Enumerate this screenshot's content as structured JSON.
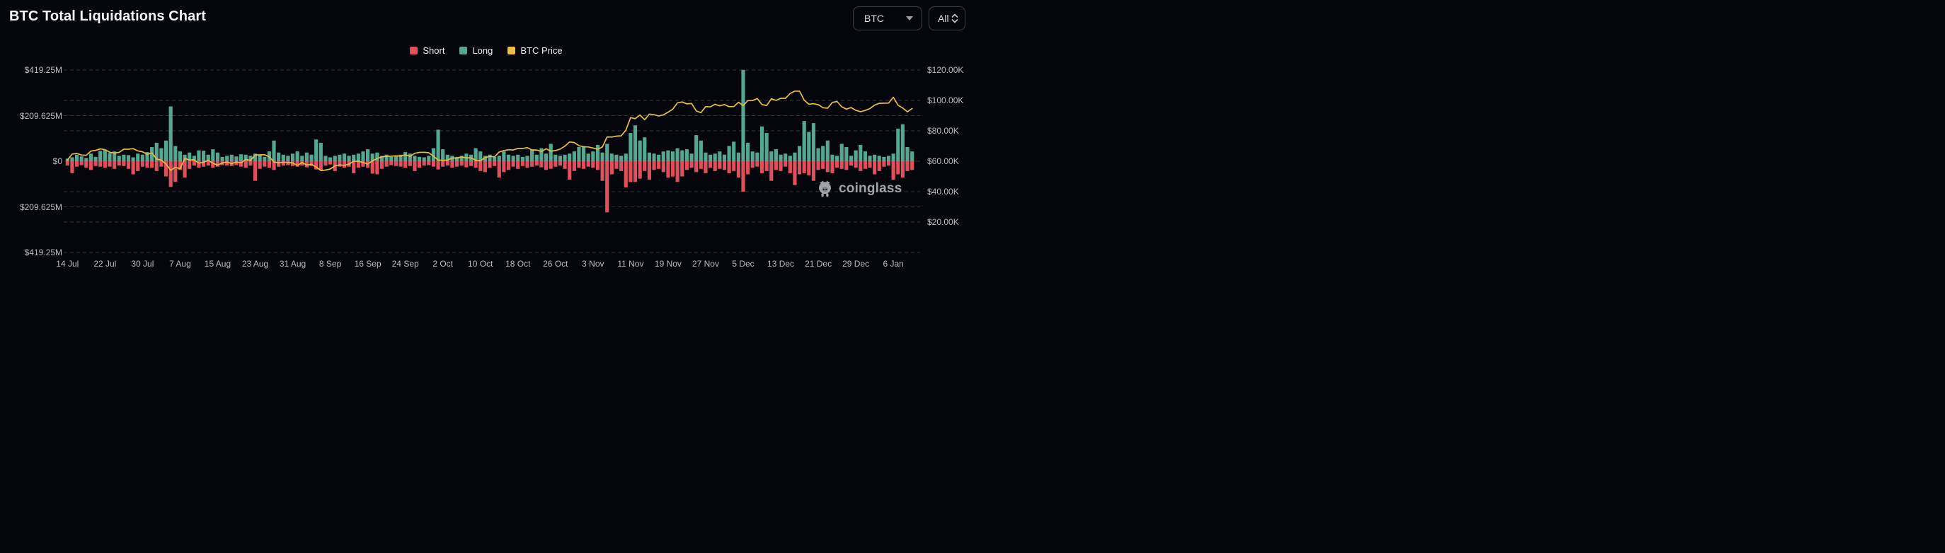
{
  "header": {
    "title": "BTC Total Liquidations Chart"
  },
  "controls": {
    "symbol_select": {
      "value": "BTC",
      "icon": "chevron-down-icon"
    },
    "range_select": {
      "value": "All",
      "icon": "up-down-arrows-icon"
    }
  },
  "legend": [
    {
      "label": "Short",
      "color": "#e0505c"
    },
    {
      "label": "Long",
      "color": "#54a791"
    },
    {
      "label": "BTC Price",
      "color": "#ecbe3d"
    }
  ],
  "watermark": {
    "text": "coinglass",
    "icon": "coinglass-pig-icon"
  },
  "colors": {
    "background": "#04060b",
    "grid": "#33363c",
    "zero_line": "#2b2e34",
    "axis_text": "#b9bcc2",
    "short": "#e0505c",
    "long": "#54a791",
    "price": "#ecbe3d",
    "title_text": "#f2f3f5",
    "watermark": "#aeb1b6",
    "control_border": "#3c4048"
  },
  "chart_data": {
    "type": "bar",
    "subtype": "bidirectional-bars-with-line-overlay",
    "title": "BTC Total Liquidations Chart",
    "grid": "dashed-horizontal",
    "legend_position": "top-center",
    "x": {
      "start": "14 Jul",
      "end": "10 Jan",
      "days": 181,
      "interval": "1d"
    },
    "x_ticks": [
      {
        "label": "14 Jul",
        "day": 0
      },
      {
        "label": "22 Jul",
        "day": 8
      },
      {
        "label": "30 Jul",
        "day": 16
      },
      {
        "label": "7 Aug",
        "day": 24
      },
      {
        "label": "15 Aug",
        "day": 32
      },
      {
        "label": "23 Aug",
        "day": 40
      },
      {
        "label": "31 Aug",
        "day": 48
      },
      {
        "label": "8 Sep",
        "day": 56
      },
      {
        "label": "16 Sep",
        "day": 64
      },
      {
        "label": "24 Sep",
        "day": 72
      },
      {
        "label": "2 Oct",
        "day": 80
      },
      {
        "label": "10 Oct",
        "day": 88
      },
      {
        "label": "18 Oct",
        "day": 96
      },
      {
        "label": "26 Oct",
        "day": 104
      },
      {
        "label": "3 Nov",
        "day": 112
      },
      {
        "label": "11 Nov",
        "day": 120
      },
      {
        "label": "19 Nov",
        "day": 128
      },
      {
        "label": "27 Nov",
        "day": 136
      },
      {
        "label": "5 Dec",
        "day": 144
      },
      {
        "label": "13 Dec",
        "day": 152
      },
      {
        "label": "21 Dec",
        "day": 160
      },
      {
        "label": "29 Dec",
        "day": 168
      },
      {
        "label": "6 Jan",
        "day": 176
      }
    ],
    "left_axis": {
      "unit": "$M",
      "ticks": [
        {
          "label": "$419.25M",
          "value": 419.25
        },
        {
          "label": "$209.625M",
          "value": 209.625
        },
        {
          "label": "$0",
          "value": 0
        },
        {
          "label": "$209.625M",
          "value": -209.625
        },
        {
          "label": "$419.25M",
          "value": -419.25
        }
      ]
    },
    "right_axis": {
      "unit": "$K",
      "zero_line_price_k": 60,
      "ticks": [
        {
          "label": "$120.00K",
          "value": 120
        },
        {
          "label": "$100.00K",
          "value": 100
        },
        {
          "label": "$80.00K",
          "value": 80
        },
        {
          "label": "$60.00K",
          "value": 60
        },
        {
          "label": "$40.00K",
          "value": 40
        },
        {
          "label": "$20.00K",
          "value": 20
        }
      ]
    },
    "series": [
      {
        "name": "Long",
        "axis": "left",
        "unit": "$M",
        "direction": "up",
        "color": "#54a791",
        "values": [
          12,
          18,
          30,
          22,
          15,
          35,
          20,
          48,
          52,
          38,
          45,
          25,
          30,
          28,
          18,
          35,
          30,
          42,
          65,
          85,
          60,
          95,
          252,
          70,
          45,
          30,
          40,
          25,
          50,
          48,
          30,
          55,
          40,
          20,
          25,
          30,
          22,
          32,
          30,
          25,
          35,
          28,
          20,
          45,
          95,
          40,
          30,
          25,
          35,
          45,
          25,
          40,
          30,
          100,
          85,
          25,
          18,
          25,
          30,
          35,
          25,
          30,
          35,
          45,
          55,
          35,
          40,
          25,
          30,
          20,
          25,
          30,
          42,
          35,
          25,
          20,
          18,
          25,
          60,
          145,
          55,
          30,
          25,
          20,
          25,
          35,
          30,
          60,
          45,
          25,
          30,
          20,
          25,
          45,
          30,
          25,
          30,
          20,
          25,
          55,
          30,
          60,
          35,
          80,
          30,
          25,
          30,
          35,
          45,
          65,
          70,
          35,
          45,
          75,
          40,
          80,
          35,
          30,
          25,
          35,
          130,
          165,
          95,
          110,
          40,
          35,
          30,
          45,
          50,
          45,
          60,
          50,
          55,
          35,
          120,
          95,
          40,
          30,
          35,
          45,
          30,
          70,
          90,
          40,
          420,
          85,
          45,
          40,
          160,
          130,
          45,
          55,
          30,
          35,
          25,
          40,
          70,
          185,
          135,
          175,
          60,
          70,
          95,
          30,
          25,
          80,
          65,
          25,
          50,
          75,
          45,
          25,
          30,
          25,
          20,
          25,
          35,
          150,
          170,
          65,
          45
        ]
      },
      {
        "name": "Short",
        "axis": "left",
        "unit": "$M",
        "direction": "down",
        "color": "#e0505c",
        "values": [
          20,
          55,
          25,
          18,
          30,
          40,
          22,
          25,
          30,
          25,
          35,
          20,
          22,
          35,
          60,
          45,
          25,
          30,
          30,
          45,
          25,
          70,
          118,
          95,
          40,
          75,
          35,
          20,
          30,
          25,
          20,
          30,
          25,
          18,
          20,
          22,
          18,
          25,
          30,
          20,
          90,
          35,
          25,
          30,
          40,
          25,
          20,
          18,
          22,
          25,
          20,
          28,
          22,
          38,
          40,
          20,
          15,
          45,
          25,
          30,
          25,
          55,
          30,
          25,
          30,
          57,
          60,
          35,
          25,
          18,
          22,
          25,
          30,
          22,
          45,
          30,
          20,
          18,
          25,
          38,
          25,
          20,
          30,
          25,
          20,
          28,
          22,
          30,
          45,
          50,
          30,
          22,
          75,
          50,
          40,
          25,
          35,
          22,
          30,
          25,
          20,
          28,
          40,
          35,
          25,
          20,
          35,
          85,
          45,
          30,
          35,
          25,
          30,
          40,
          90,
          235,
          60,
          35,
          45,
          120,
          95,
          95,
          80,
          45,
          85,
          40,
          35,
          50,
          75,
          70,
          95,
          70,
          40,
          30,
          50,
          35,
          55,
          30,
          45,
          35,
          40,
          55,
          45,
          75,
          140,
          60,
          30,
          25,
          55,
          45,
          90,
          40,
          45,
          25,
          55,
          110,
          60,
          55,
          65,
          90,
          40,
          35,
          50,
          55,
          30,
          35,
          40,
          20,
          30,
          45,
          35,
          30,
          60,
          45,
          25,
          20,
          85,
          60,
          75,
          45,
          40
        ]
      },
      {
        "name": "BTC Price",
        "axis": "right",
        "unit": "$K",
        "color": "#ecbe3d",
        "values": [
          60.8,
          64.7,
          65.1,
          64.1,
          63.9,
          66.7,
          67.1,
          68.2,
          67.6,
          65.9,
          65.4,
          65.8,
          67.9,
          67.9,
          68.3,
          66.8,
          66.2,
          64.6,
          65.4,
          61.5,
          60.7,
          58.2,
          54.0,
          56.0,
          55.1,
          61.7,
          60.9,
          60.9,
          58.7,
          59.4,
          60.6,
          58.7,
          57.5,
          58.9,
          59.5,
          58.4,
          59.5,
          59.0,
          61.2,
          60.4,
          64.1,
          64.2,
          64.3,
          62.9,
          59.5,
          59.0,
          59.4,
          59.1,
          58.9,
          57.3,
          59.1,
          57.5,
          58.0,
          56.2,
          53.9,
          54.2,
          54.9,
          57.0,
          57.6,
          57.3,
          58.1,
          60.0,
          60.0,
          59.2,
          58.2,
          60.3,
          61.8,
          62.9,
          63.2,
          63.3,
          63.6,
          63.4,
          64.3,
          63.2,
          65.2,
          65.8,
          65.9,
          65.6,
          63.3,
          60.8,
          60.6,
          60.8,
          62.1,
          62.1,
          62.8,
          62.2,
          62.3,
          60.6,
          60.3,
          62.4,
          63.2,
          62.9,
          66.1,
          67.0,
          67.6,
          67.4,
          68.4,
          68.4,
          69.0,
          67.4,
          67.4,
          66.4,
          68.2,
          66.6,
          67.0,
          68.0,
          69.9,
          72.7,
          72.3,
          70.2,
          69.5,
          69.4,
          68.7,
          67.8,
          69.4,
          76.0,
          75.9,
          76.5,
          76.7,
          80.4,
          88.7,
          88.0,
          90.4,
          87.3,
          91.0,
          90.6,
          89.8,
          90.5,
          92.3,
          94.3,
          98.4,
          99.0,
          97.7,
          98.0,
          93.1,
          91.9,
          95.9,
          95.7,
          97.5,
          96.4,
          97.3,
          95.9,
          96.0,
          98.8,
          96.6,
          99.9,
          99.9,
          101.2,
          97.3,
          96.6,
          101.1,
          100.0,
          101.4,
          101.4,
          104.5,
          106.1,
          106.1,
          100.2,
          97.5,
          97.8,
          97.2,
          95.2,
          94.9,
          98.7,
          99.3,
          95.8,
          94.3,
          95.3,
          93.5,
          92.6,
          93.4,
          94.6,
          96.9,
          98.1,
          98.2,
          98.3,
          102.1,
          96.9,
          95.0,
          92.5,
          94.7
        ]
      }
    ]
  }
}
